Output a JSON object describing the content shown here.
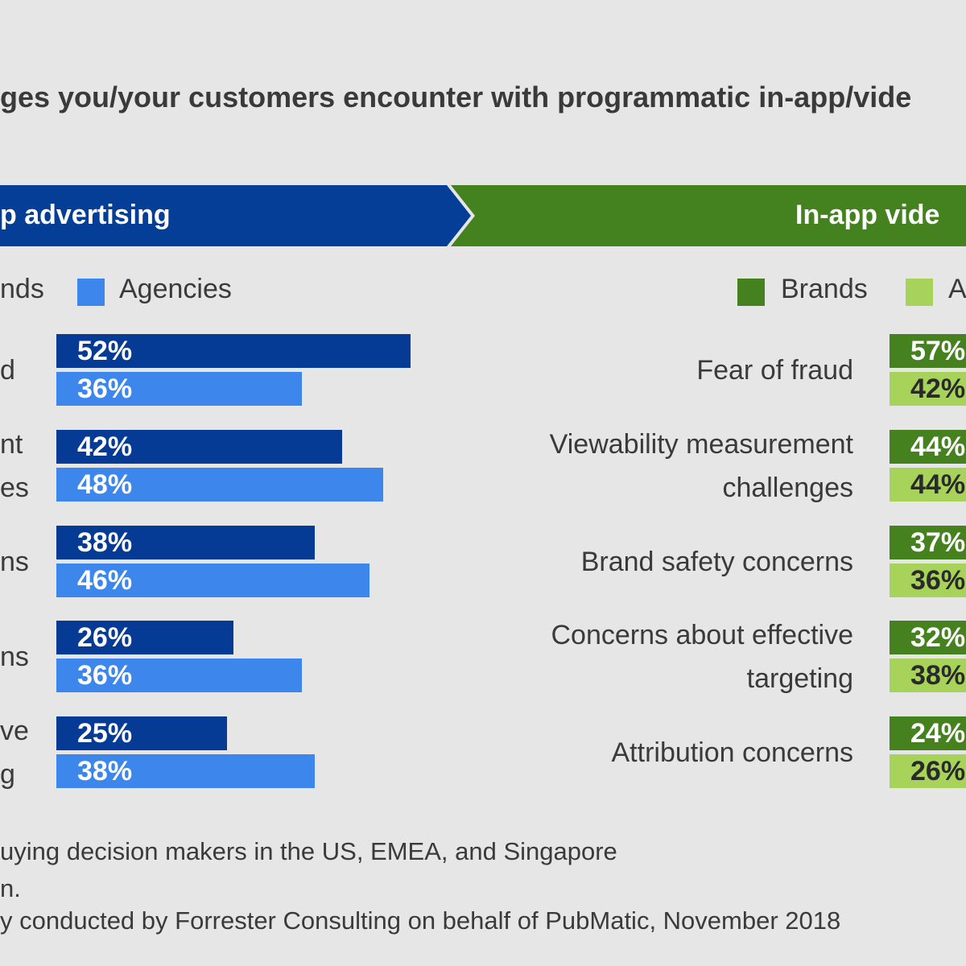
{
  "question": "ges you/your customers encounter with programmatic in-app/vide",
  "colors": {
    "app_banner": "#043e96",
    "video_banner": "#43821f",
    "brands_app": "#063b95",
    "agencies_app": "#3c86ec",
    "brands_video": "#45821f",
    "agencies_video": "#a7d35a"
  },
  "banners": {
    "app": "p advertising",
    "video": "In-app vide"
  },
  "legends": {
    "app": {
      "brands": "nds",
      "agencies": "Agencies"
    },
    "video": {
      "brands": "Brands",
      "agencies": "A"
    }
  },
  "chart_data": [
    {
      "type": "bar",
      "panel": "app advertising",
      "orientation": "horizontal",
      "categories": [
        "d",
        "nt / es",
        "ns",
        "ns",
        "ve / g"
      ],
      "series": [
        {
          "name": "nds",
          "values": [
            52,
            42,
            38,
            26,
            25
          ]
        },
        {
          "name": "Agencies",
          "values": [
            36,
            48,
            46,
            36,
            38
          ]
        }
      ],
      "value_labels": {
        "brands": [
          "52%",
          "42%",
          "38%",
          "26%",
          "25%"
        ],
        "agencies": [
          "36%",
          "48%",
          "46%",
          "36%",
          "38%"
        ]
      },
      "category_label_lines": [
        [
          "d"
        ],
        [
          "nt",
          "es"
        ],
        [
          "ns"
        ],
        [
          "ns"
        ],
        [
          "ve",
          "g"
        ]
      ],
      "xlim": [
        0,
        100
      ],
      "legend_position": "top",
      "grid": false
    },
    {
      "type": "bar",
      "panel": "In-app video",
      "orientation": "horizontal",
      "categories": [
        "Fear of fraud",
        "Viewability measurement challenges",
        "Brand safety concerns",
        "Concerns about effective targeting",
        "Attribution concerns"
      ],
      "category_label_lines": [
        [
          "Fear of fraud"
        ],
        [
          "Viewability measurement",
          "challenges"
        ],
        [
          "Brand safety concerns"
        ],
        [
          "Concerns about effective",
          "targeting"
        ],
        [
          "Attribution concerns"
        ]
      ],
      "series": [
        {
          "name": "Brands",
          "values": [
            57,
            44,
            37,
            32,
            24
          ]
        },
        {
          "name": "A",
          "values": [
            42,
            44,
            36,
            38,
            26
          ]
        }
      ],
      "value_labels": {
        "brands": [
          "57%",
          "44%",
          "37%",
          "32%",
          "24%"
        ],
        "agencies": [
          "42%",
          "44%",
          "36%",
          "38%",
          "26%"
        ]
      },
      "xlim": [
        0,
        100
      ],
      "legend_position": "top",
      "grid": false
    }
  ],
  "footnotes": [
    "uying decision makers in the US, EMEA, and Singapore",
    "n.",
    "y conducted by Forrester Consulting on behalf of PubMatic, November 2018"
  ]
}
